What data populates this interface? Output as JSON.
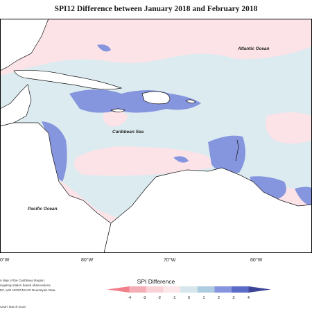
{
  "title": "SPI12 Difference between January 2018 and February 2018",
  "map": {
    "labels": {
      "atlantic": "Atlantic Ocean",
      "caribbean": "Caribbean Sea",
      "pacific": "Pacific Ocean"
    },
    "lon_ticks": [
      "0°W",
      "80°W",
      "70°W",
      "60°W"
    ]
  },
  "credit": {
    "line1": "n Map of the Caribbean Region.",
    "line2": "regating station based observations,",
    "line3": "DF, with NCEP/NCAR Reanalysis Data."
  },
  "legend": {
    "title": "SPI Difference",
    "ticks": [
      "-4",
      "-3",
      "-2",
      "-1",
      "0",
      "1",
      "2",
      "3",
      "4"
    ],
    "colors": [
      "#f0808a",
      "#f5aeb6",
      "#f9d2d7",
      "#fce6ea",
      "#d5e6ec",
      "#aecce0",
      "#8595de",
      "#5b6cc8",
      "#3d4599"
    ]
  },
  "stamp": "CIMH March-2018"
}
